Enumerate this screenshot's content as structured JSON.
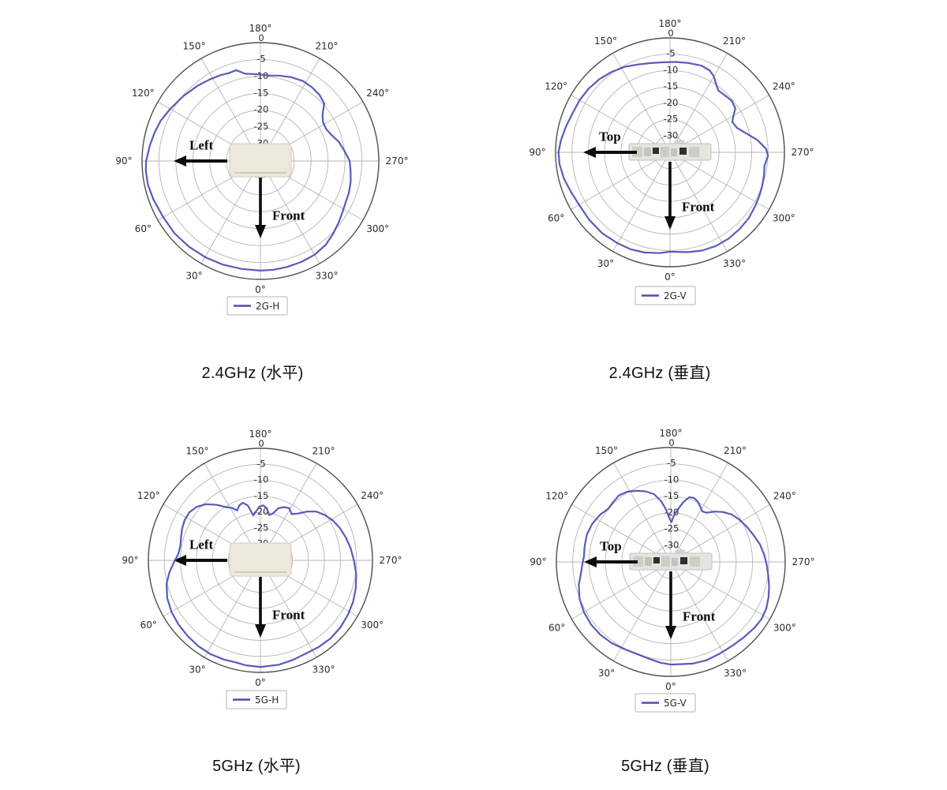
{
  "page": {
    "background": "#ffffff"
  },
  "style": {
    "trace_color": "#4c4db4",
    "outer_ring_color": "#4f4f4f",
    "grid_color": "#b5b5b5",
    "tick_label_color": "#2b2b2b",
    "annotation_color": "#0c0c0c",
    "legend_border_color": "#b5b5b5",
    "legend_text_color": "#2a2a2a",
    "device_top_fill": "#ece8da",
    "device_top_border": "#d3cebc",
    "device_rear_fill": "#e4e4e0",
    "device_rear_border": "#c2c2bc"
  },
  "chart_data": [
    {
      "type": "line",
      "subtype": "polar",
      "caption": "2.4GHz (水平)",
      "band": "2.4GHz",
      "plane": "水平",
      "grid": true,
      "rlim": [
        -35,
        0
      ],
      "radial_ticks": [
        0,
        -5,
        -10,
        -15,
        -20,
        -25,
        -30
      ],
      "radial_tick_labels": [
        "0",
        "-5",
        "-10",
        "-15",
        "-20",
        "-25",
        "-30"
      ],
      "angle_tick_labels": [
        "0°",
        "30°",
        "60°",
        "90°",
        "120°",
        "150°",
        "180°",
        "210°",
        "240°",
        "270°",
        "300°",
        "330°"
      ],
      "annotations": {
        "side_arrow_label": "Left",
        "front_arrow_label": "Front"
      },
      "device": "router-top-view",
      "legend": {
        "label": "2G-H",
        "position": "bottom"
      },
      "series": [
        {
          "name": "2G-H",
          "color": "#4c4db4",
          "unit": "dB",
          "points": [
            [
              0,
              -2.6
            ],
            [
              10,
              -2.6
            ],
            [
              20,
              -2.4
            ],
            [
              30,
              -2.2
            ],
            [
              40,
              -2.0
            ],
            [
              50,
              -1.8
            ],
            [
              60,
              -1.8
            ],
            [
              70,
              -1.4
            ],
            [
              78,
              -1.0
            ],
            [
              85,
              -1.0
            ],
            [
              90,
              -1.2
            ],
            [
              98,
              -2.0
            ],
            [
              105,
              -2.6
            ],
            [
              112,
              -3.2
            ],
            [
              120,
              -4.2
            ],
            [
              130,
              -5.2
            ],
            [
              140,
              -6.0
            ],
            [
              148,
              -6.6
            ],
            [
              155,
              -7.0
            ],
            [
              160,
              -7.4
            ],
            [
              165,
              -7.2
            ],
            [
              170,
              -8.8
            ],
            [
              175,
              -9.2
            ],
            [
              180,
              -9.4
            ],
            [
              186,
              -9.6
            ],
            [
              192,
              -9.2
            ],
            [
              200,
              -8.6
            ],
            [
              208,
              -8.2
            ],
            [
              215,
              -8.4
            ],
            [
              222,
              -8.8
            ],
            [
              228,
              -9.6
            ],
            [
              233,
              -12.0
            ],
            [
              238,
              -13.2
            ],
            [
              244,
              -13.4
            ],
            [
              250,
              -12.6
            ],
            [
              256,
              -11.2
            ],
            [
              262,
              -10.2
            ],
            [
              270,
              -8.6
            ],
            [
              276,
              -8.2
            ],
            [
              283,
              -7.6
            ],
            [
              290,
              -7.2
            ],
            [
              296,
              -7.0
            ],
            [
              302,
              -6.4
            ],
            [
              308,
              -5.6
            ],
            [
              315,
              -4.6
            ],
            [
              322,
              -3.6
            ],
            [
              330,
              -3.0
            ],
            [
              338,
              -2.8
            ],
            [
              346,
              -2.7
            ],
            [
              353,
              -2.6
            ],
            [
              360,
              -2.6
            ]
          ]
        }
      ]
    },
    {
      "type": "line",
      "subtype": "polar",
      "caption": "2.4GHz (垂直)",
      "band": "2.4GHz",
      "plane": "垂直",
      "grid": true,
      "rlim": [
        -35,
        0
      ],
      "radial_ticks": [
        0,
        -5,
        -10,
        -15,
        -20,
        -25,
        -30
      ],
      "radial_tick_labels": [
        "0",
        "-5",
        "-10",
        "-15",
        "-20",
        "-25",
        "-30"
      ],
      "angle_tick_labels": [
        "0°",
        "30°",
        "60°",
        "90°",
        "120°",
        "150°",
        "180°",
        "210°",
        "240°",
        "270°",
        "300°",
        "330°"
      ],
      "annotations": {
        "side_arrow_label": "Top",
        "front_arrow_label": "Front"
      },
      "device": "router-rear-view",
      "legend": {
        "label": "2G-V",
        "position": "bottom"
      },
      "series": [
        {
          "name": "2G-V",
          "color": "#4c4db4",
          "unit": "dB",
          "points": [
            [
              0,
              -4.6
            ],
            [
              6,
              -4.0
            ],
            [
              14,
              -3.4
            ],
            [
              22,
              -3.0
            ],
            [
              30,
              -2.9
            ],
            [
              40,
              -2.7
            ],
            [
              50,
              -2.8
            ],
            [
              60,
              -2.9
            ],
            [
              68,
              -2.4
            ],
            [
              76,
              -1.6
            ],
            [
              84,
              -1.0
            ],
            [
              90,
              -0.9
            ],
            [
              96,
              -1.4
            ],
            [
              104,
              -2.2
            ],
            [
              112,
              -2.9
            ],
            [
              120,
              -3.1
            ],
            [
              128,
              -3.4
            ],
            [
              136,
              -3.9
            ],
            [
              144,
              -4.6
            ],
            [
              152,
              -5.4
            ],
            [
              160,
              -6.4
            ],
            [
              168,
              -7.1
            ],
            [
              176,
              -7.4
            ],
            [
              184,
              -7.3
            ],
            [
              192,
              -7.1
            ],
            [
              200,
              -6.8
            ],
            [
              206,
              -7.2
            ],
            [
              210,
              -8.2
            ],
            [
              214,
              -9.8
            ],
            [
              218,
              -11.0
            ],
            [
              224,
              -10.8
            ],
            [
              230,
              -10.4
            ],
            [
              236,
              -10.9
            ],
            [
              240,
              -12.6
            ],
            [
              244,
              -13.8
            ],
            [
              250,
              -13.2
            ],
            [
              256,
              -11.0
            ],
            [
              262,
              -8.0
            ],
            [
              268,
              -5.6
            ],
            [
              272,
              -5.0
            ],
            [
              278,
              -5.8
            ],
            [
              284,
              -5.4
            ],
            [
              290,
              -5.0
            ],
            [
              296,
              -4.6
            ],
            [
              302,
              -4.2
            ],
            [
              310,
              -3.6
            ],
            [
              318,
              -3.3
            ],
            [
              326,
              -3.1
            ],
            [
              334,
              -3.1
            ],
            [
              342,
              -3.4
            ],
            [
              350,
              -4.0
            ],
            [
              360,
              -4.6
            ]
          ]
        }
      ]
    },
    {
      "type": "line",
      "subtype": "polar",
      "caption": "5GHz (水平)",
      "band": "5GHz",
      "plane": "水平",
      "grid": true,
      "rlim": [
        -35,
        0
      ],
      "radial_ticks": [
        0,
        -5,
        -10,
        -15,
        -20,
        -25,
        -30
      ],
      "radial_tick_labels": [
        "0",
        "-5",
        "-10",
        "-15",
        "-20",
        "-25",
        "-30"
      ],
      "angle_tick_labels": [
        "0°",
        "30°",
        "60°",
        "90°",
        "120°",
        "150°",
        "180°",
        "210°",
        "240°",
        "270°",
        "300°",
        "330°"
      ],
      "annotations": {
        "side_arrow_label": "Left",
        "front_arrow_label": "Front"
      },
      "device": "router-top-view",
      "legend": {
        "label": "5G-H",
        "position": "bottom"
      },
      "series": [
        {
          "name": "5G-H",
          "color": "#4c4db4",
          "unit": "dB",
          "points": [
            [
              0,
              -1.7
            ],
            [
              8,
              -1.9
            ],
            [
              14,
              -2.2
            ],
            [
              20,
              -2.0
            ],
            [
              28,
              -1.8
            ],
            [
              36,
              -1.9
            ],
            [
              44,
              -2.2
            ],
            [
              52,
              -2.5
            ],
            [
              60,
              -2.9
            ],
            [
              68,
              -3.6
            ],
            [
              76,
              -4.8
            ],
            [
              82,
              -6.2
            ],
            [
              88,
              -7.8
            ],
            [
              94,
              -9.2
            ],
            [
              100,
              -9.6
            ],
            [
              106,
              -9.2
            ],
            [
              112,
              -8.6
            ],
            [
              118,
              -8.2
            ],
            [
              124,
              -8.2
            ],
            [
              130,
              -9.0
            ],
            [
              136,
              -10.6
            ],
            [
              142,
              -13.0
            ],
            [
              147,
              -15.2
            ],
            [
              151,
              -16.2
            ],
            [
              155,
              -17.8
            ],
            [
              159,
              -16.6
            ],
            [
              163,
              -16.2
            ],
            [
              167,
              -17.4
            ],
            [
              171,
              -20.8
            ],
            [
              175,
              -19.6
            ],
            [
              179,
              -18.2
            ],
            [
              183,
              -17.8
            ],
            [
              187,
              -18.6
            ],
            [
              191,
              -20.6
            ],
            [
              195,
              -19.8
            ],
            [
              199,
              -17.8
            ],
            [
              204,
              -16.8
            ],
            [
              209,
              -16.4
            ],
            [
              214,
              -17.6
            ],
            [
              219,
              -16.2
            ],
            [
              224,
              -13.8
            ],
            [
              229,
              -11.8
            ],
            [
              235,
              -10.4
            ],
            [
              241,
              -9.2
            ],
            [
              248,
              -8.2
            ],
            [
              255,
              -7.4
            ],
            [
              262,
              -6.6
            ],
            [
              270,
              -5.8
            ],
            [
              278,
              -4.8
            ],
            [
              286,
              -4.0
            ],
            [
              294,
              -3.3
            ],
            [
              302,
              -2.8
            ],
            [
              310,
              -2.4
            ],
            [
              318,
              -2.2
            ],
            [
              326,
              -2.4
            ],
            [
              334,
              -2.6
            ],
            [
              342,
              -2.3
            ],
            [
              350,
              -1.9
            ],
            [
              360,
              -1.7
            ]
          ]
        }
      ]
    },
    {
      "type": "line",
      "subtype": "polar",
      "caption": "5GHz (垂直)",
      "band": "5GHz",
      "plane": "垂直",
      "grid": true,
      "rlim": [
        -35,
        0
      ],
      "radial_ticks": [
        0,
        -5,
        -10,
        -15,
        -20,
        -25,
        -30
      ],
      "radial_tick_labels": [
        "0",
        "-5",
        "-10",
        "-15",
        "-20",
        "-25",
        "-30"
      ],
      "angle_tick_labels": [
        "0°",
        "30°",
        "60°",
        "90°",
        "120°",
        "150°",
        "180°",
        "210°",
        "240°",
        "270°",
        "300°",
        "330°"
      ],
      "annotations": {
        "side_arrow_label": "Top",
        "front_arrow_label": "Front"
      },
      "device": "router-rear-view",
      "legend": {
        "label": "5G-V",
        "position": "bottom"
      },
      "series": [
        {
          "name": "5G-V",
          "color": "#4c4db4",
          "unit": "dB",
          "points": [
            [
              0,
              -3.6
            ],
            [
              6,
              -4.0
            ],
            [
              12,
              -4.6
            ],
            [
              20,
              -5.0
            ],
            [
              28,
              -4.8
            ],
            [
              36,
              -4.3
            ],
            [
              44,
              -4.0
            ],
            [
              52,
              -4.0
            ],
            [
              60,
              -4.3
            ],
            [
              68,
              -4.9
            ],
            [
              76,
              -6.0
            ],
            [
              82,
              -7.2
            ],
            [
              88,
              -7.9
            ],
            [
              94,
              -8.4
            ],
            [
              100,
              -8.2
            ],
            [
              108,
              -8.0
            ],
            [
              116,
              -8.3
            ],
            [
              124,
              -9.0
            ],
            [
              130,
              -9.9
            ],
            [
              136,
              -9.6
            ],
            [
              142,
              -9.2
            ],
            [
              148,
              -9.7
            ],
            [
              154,
              -10.8
            ],
            [
              160,
              -12.0
            ],
            [
              166,
              -13.6
            ],
            [
              171,
              -16.2
            ],
            [
              175,
              -19.0
            ],
            [
              178,
              -21.6
            ],
            [
              181,
              -22.8
            ],
            [
              184,
              -20.6
            ],
            [
              188,
              -18.6
            ],
            [
              192,
              -16.2
            ],
            [
              196,
              -14.4
            ],
            [
              200,
              -14.2
            ],
            [
              204,
              -14.8
            ],
            [
              208,
              -15.8
            ],
            [
              212,
              -16.8
            ],
            [
              216,
              -16.4
            ],
            [
              221,
              -14.6
            ],
            [
              226,
              -13.0
            ],
            [
              232,
              -11.4
            ],
            [
              238,
              -10.4
            ],
            [
              245,
              -9.4
            ],
            [
              252,
              -8.4
            ],
            [
              259,
              -7.2
            ],
            [
              266,
              -6.3
            ],
            [
              272,
              -5.6
            ],
            [
              278,
              -4.9
            ],
            [
              284,
              -4.0
            ],
            [
              290,
              -3.2
            ],
            [
              296,
              -2.5
            ],
            [
              302,
              -2.2
            ],
            [
              308,
              -2.4
            ],
            [
              316,
              -2.9
            ],
            [
              324,
              -3.2
            ],
            [
              332,
              -3.2
            ],
            [
              340,
              -3.0
            ],
            [
              348,
              -3.2
            ],
            [
              360,
              -3.6
            ]
          ]
        }
      ]
    }
  ]
}
